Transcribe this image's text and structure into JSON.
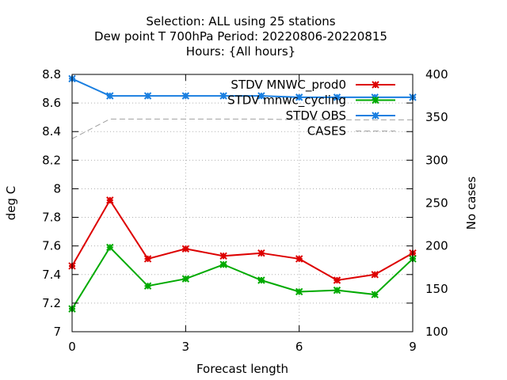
{
  "chart_data": {
    "type": "line",
    "title_lines": [
      "Selection: ALL using    25 stations",
      "Dew point T 700hPa   Period: 20220806-20220815",
      "Hours: {All hours}"
    ],
    "xlabel": "Forecast length",
    "ylabel": "deg C",
    "y2label": "No cases",
    "x": [
      0,
      1,
      2,
      3,
      4,
      5,
      6,
      7,
      8,
      9
    ],
    "xlim": [
      0,
      9
    ],
    "ylim": [
      7,
      8.8
    ],
    "y2lim": [
      100,
      400
    ],
    "xticks": [
      0,
      3,
      6,
      9
    ],
    "yticks": [
      7,
      7.2,
      7.4,
      7.6,
      7.8,
      8,
      8.2,
      8.4,
      8.6,
      8.8
    ],
    "yticklabels": [
      "7",
      "7.2",
      "7.4",
      "7.6",
      "7.8",
      "8",
      "8.2",
      "8.4",
      "8.6",
      "8.8"
    ],
    "y2ticks": [
      100,
      150,
      200,
      250,
      300,
      350,
      400
    ],
    "grid": true,
    "legend_position": "top-right",
    "series": [
      {
        "name": "STDV MNWC_prod0",
        "color": "#dd0000",
        "marker": "x",
        "axis": "y1",
        "values": [
          7.46,
          7.92,
          7.51,
          7.58,
          7.53,
          7.55,
          7.51,
          7.36,
          7.4,
          7.55
        ]
      },
      {
        "name": "STDV mnwc_cycling",
        "color": "#00aa00",
        "marker": "x",
        "axis": "y1",
        "values": [
          7.16,
          7.59,
          7.32,
          7.37,
          7.47,
          7.36,
          7.28,
          7.29,
          7.26,
          7.51
        ]
      },
      {
        "name": "STDV OBS",
        "color": "#1a7fe0",
        "marker": "x",
        "axis": "y1",
        "values": [
          8.77,
          8.65,
          8.65,
          8.65,
          8.65,
          8.65,
          8.64,
          8.64,
          8.64,
          8.64
        ]
      },
      {
        "name": "CASES",
        "color": "#a0a0a0",
        "marker": "none",
        "dashed": true,
        "axis": "y2",
        "values": [
          325,
          348,
          348,
          348,
          348,
          348,
          347,
          347,
          347,
          347
        ]
      }
    ]
  }
}
